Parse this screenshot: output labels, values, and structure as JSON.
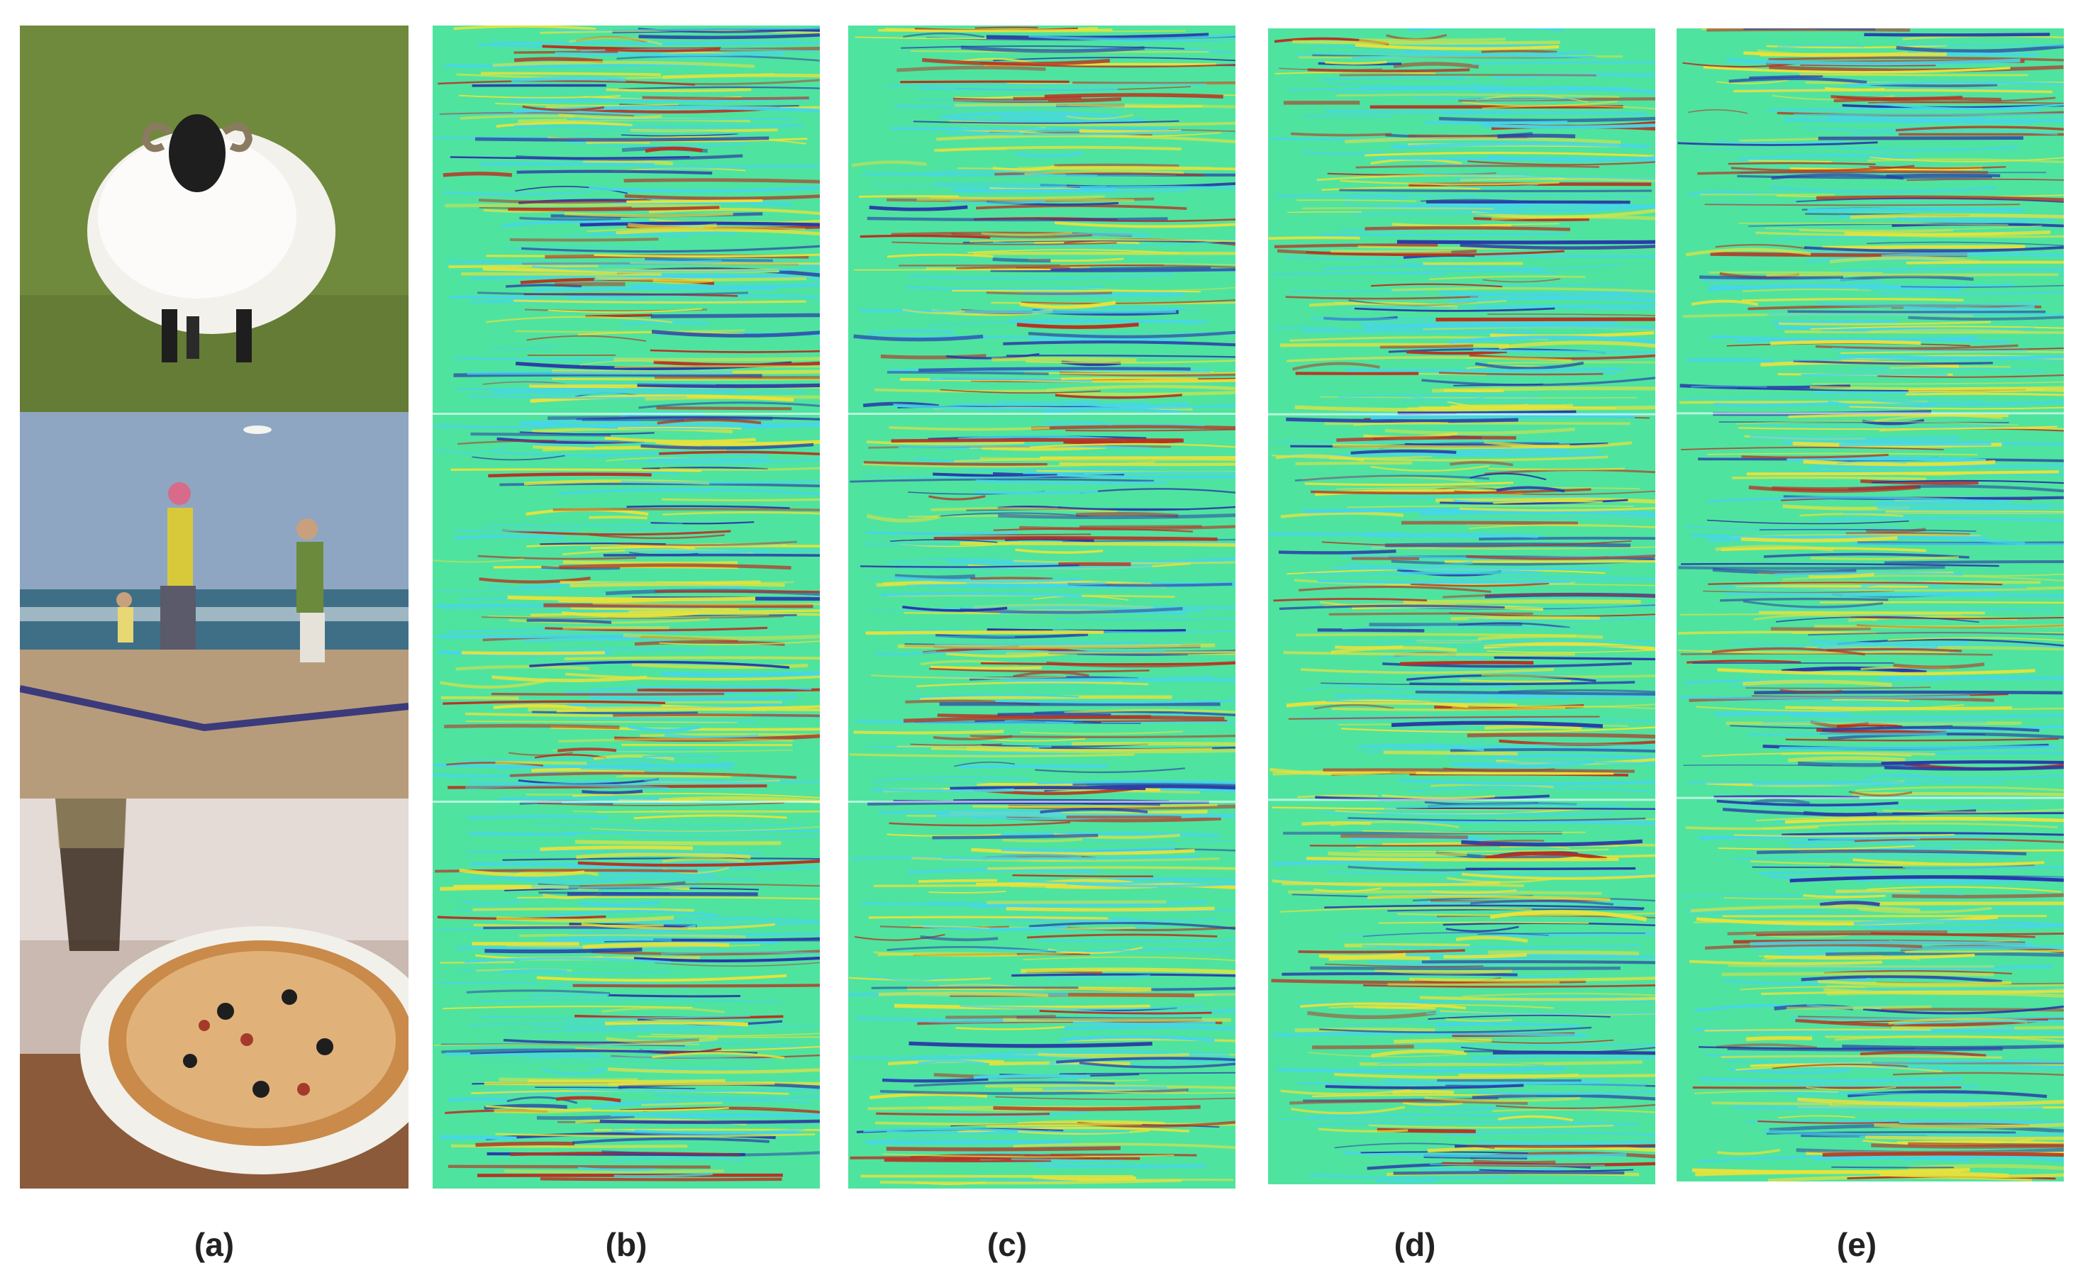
{
  "captions": {
    "a": "(a)",
    "b": "(b)",
    "c": "(c)",
    "d": "(d)",
    "e": "(e)"
  },
  "colors": {
    "map_base": "#4fe3a0",
    "map_cyan": "#46d6e8",
    "map_yellow": "#e8e23a",
    "map_red": "#b83222",
    "map_blue": "#2a3aa8",
    "grass": "#6f8a3c",
    "sky": "#8fa6c2",
    "sea": "#3f6f86",
    "sand": "#b79c7c",
    "plate": "#f2f0ea",
    "pizza_crust": "#c98a4a"
  }
}
